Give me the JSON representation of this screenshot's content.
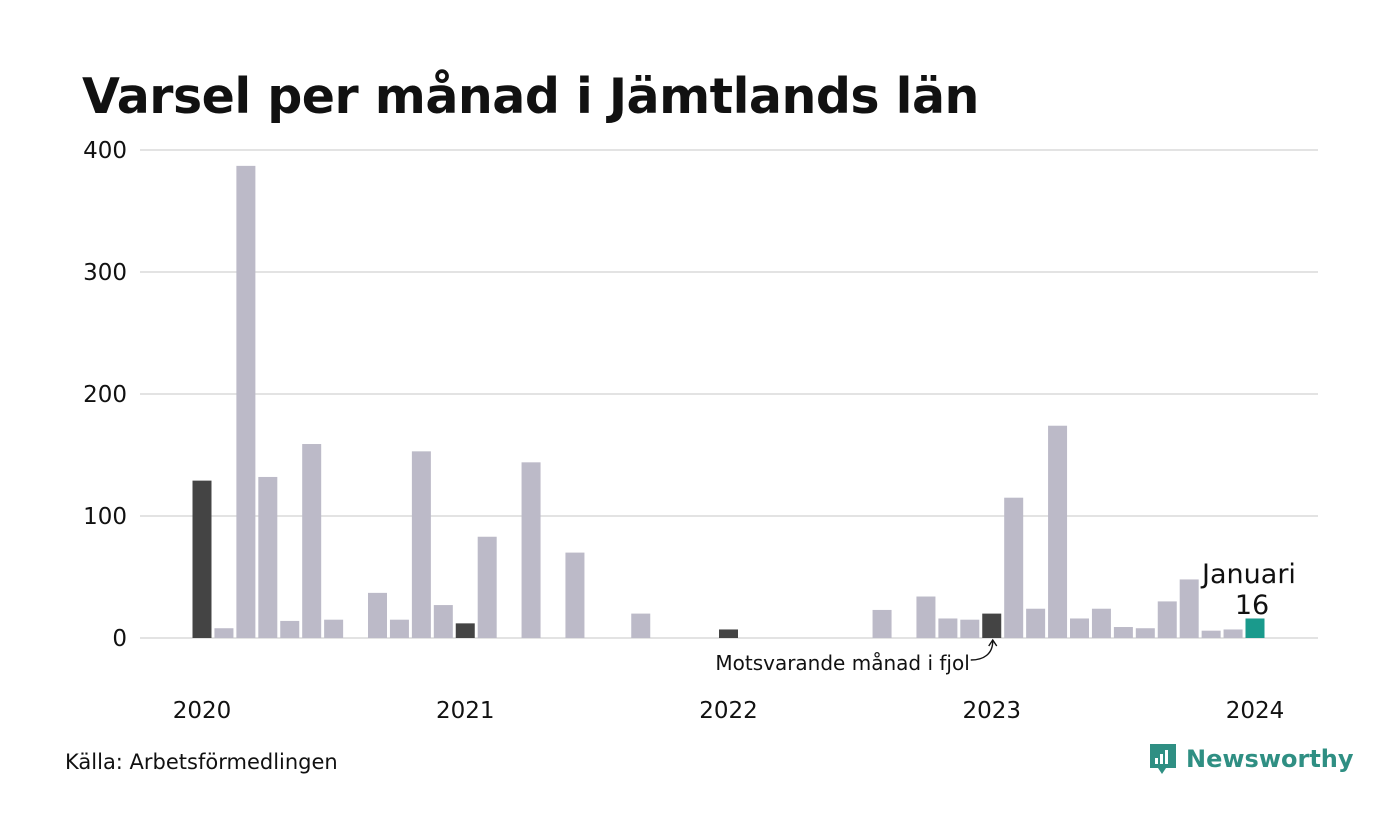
{
  "chart_data": {
    "type": "bar",
    "title": "Varsel per månad i Jämtlands län",
    "source": "Källa: Arbetsförmedlingen",
    "brand": "Newsworthy",
    "ylim": [
      0,
      400
    ],
    "yticks": [
      "0",
      "100",
      "200",
      "300",
      "400"
    ],
    "ytick_values": [
      0,
      100,
      200,
      300,
      400
    ],
    "grid": true,
    "x_start": "2020-01",
    "x_end": "2024-01",
    "year_labels": [
      {
        "label": "2020",
        "month": "2020-01"
      },
      {
        "label": "2021",
        "month": "2021-01"
      },
      {
        "label": "2022",
        "month": "2022-01"
      },
      {
        "label": "2023",
        "month": "2023-01"
      },
      {
        "label": "2024",
        "month": "2024-01"
      }
    ],
    "colors": {
      "default": "#bcbac8",
      "same_month": "#444444",
      "current": "#1a9a8c",
      "grid": "#e3e3e3"
    },
    "bars": [
      {
        "month": "2020-01",
        "value": 129,
        "kind": "same_month"
      },
      {
        "month": "2020-02",
        "value": 8,
        "kind": "default"
      },
      {
        "month": "2020-03",
        "value": 387,
        "kind": "default"
      },
      {
        "month": "2020-04",
        "value": 132,
        "kind": "default"
      },
      {
        "month": "2020-05",
        "value": 14,
        "kind": "default"
      },
      {
        "month": "2020-06",
        "value": 159,
        "kind": "default"
      },
      {
        "month": "2020-07",
        "value": 15,
        "kind": "default"
      },
      {
        "month": "2020-08",
        "value": 0,
        "kind": "default"
      },
      {
        "month": "2020-09",
        "value": 37,
        "kind": "default"
      },
      {
        "month": "2020-10",
        "value": 15,
        "kind": "default"
      },
      {
        "month": "2020-11",
        "value": 153,
        "kind": "default"
      },
      {
        "month": "2020-12",
        "value": 27,
        "kind": "default"
      },
      {
        "month": "2021-01",
        "value": 12,
        "kind": "same_month"
      },
      {
        "month": "2021-02",
        "value": 83,
        "kind": "default"
      },
      {
        "month": "2021-03",
        "value": 0,
        "kind": "default"
      },
      {
        "month": "2021-04",
        "value": 144,
        "kind": "default"
      },
      {
        "month": "2021-05",
        "value": 0,
        "kind": "default"
      },
      {
        "month": "2021-06",
        "value": 70,
        "kind": "default"
      },
      {
        "month": "2021-07",
        "value": 0,
        "kind": "default"
      },
      {
        "month": "2021-08",
        "value": 0,
        "kind": "default"
      },
      {
        "month": "2021-09",
        "value": 20,
        "kind": "default"
      },
      {
        "month": "2021-10",
        "value": 0,
        "kind": "default"
      },
      {
        "month": "2021-11",
        "value": 0,
        "kind": "default"
      },
      {
        "month": "2021-12",
        "value": 0,
        "kind": "default"
      },
      {
        "month": "2022-01",
        "value": 7,
        "kind": "same_month"
      },
      {
        "month": "2022-02",
        "value": 0,
        "kind": "default"
      },
      {
        "month": "2022-03",
        "value": 0,
        "kind": "default"
      },
      {
        "month": "2022-04",
        "value": 0,
        "kind": "default"
      },
      {
        "month": "2022-05",
        "value": 0,
        "kind": "default"
      },
      {
        "month": "2022-06",
        "value": 0,
        "kind": "default"
      },
      {
        "month": "2022-07",
        "value": 0,
        "kind": "default"
      },
      {
        "month": "2022-08",
        "value": 23,
        "kind": "default"
      },
      {
        "month": "2022-09",
        "value": 0,
        "kind": "default"
      },
      {
        "month": "2022-10",
        "value": 34,
        "kind": "default"
      },
      {
        "month": "2022-11",
        "value": 16,
        "kind": "default"
      },
      {
        "month": "2022-12",
        "value": 15,
        "kind": "default"
      },
      {
        "month": "2023-01",
        "value": 20,
        "kind": "same_month"
      },
      {
        "month": "2023-02",
        "value": 115,
        "kind": "default"
      },
      {
        "month": "2023-03",
        "value": 24,
        "kind": "default"
      },
      {
        "month": "2023-04",
        "value": 174,
        "kind": "default"
      },
      {
        "month": "2023-05",
        "value": 16,
        "kind": "default"
      },
      {
        "month": "2023-06",
        "value": 24,
        "kind": "default"
      },
      {
        "month": "2023-07",
        "value": 9,
        "kind": "default"
      },
      {
        "month": "2023-08",
        "value": 8,
        "kind": "default"
      },
      {
        "month": "2023-09",
        "value": 30,
        "kind": "default"
      },
      {
        "month": "2023-10",
        "value": 48,
        "kind": "default"
      },
      {
        "month": "2023-11",
        "value": 6,
        "kind": "default"
      },
      {
        "month": "2023-12",
        "value": 7,
        "kind": "default"
      },
      {
        "month": "2024-01",
        "value": 16,
        "kind": "current"
      }
    ],
    "annotations": {
      "same_month_label": "Motsvarande månad i fjol",
      "same_month_target": "2023-01",
      "current_month_name": "Januari",
      "current_value_label": "16",
      "current_target": "2024-01"
    }
  }
}
